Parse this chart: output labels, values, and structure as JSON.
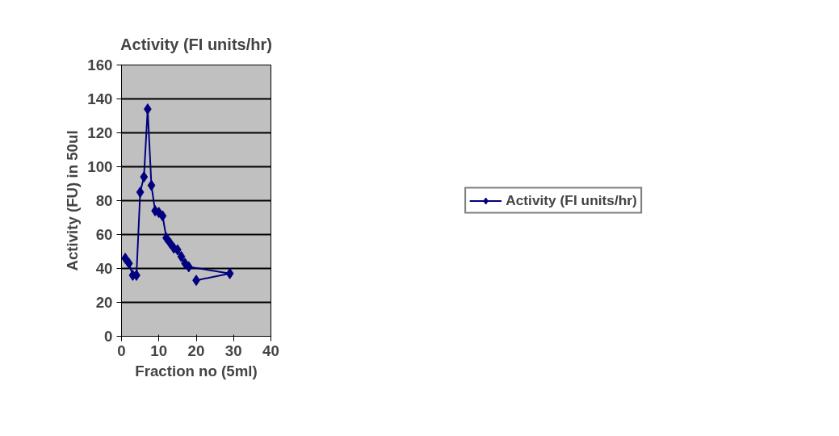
{
  "chart_data": {
    "type": "line",
    "title": "Activity (FI units/hr)",
    "xlabel": "Fraction no (5ml)",
    "ylabel": "Activity (FU) in 50ul",
    "x": [
      1,
      2,
      3,
      4,
      5,
      6,
      7,
      8,
      9,
      10,
      11,
      12,
      13,
      14,
      15,
      16,
      17,
      18,
      29,
      20
    ],
    "series": [
      {
        "name": "Activity (FI units/hr)",
        "color": "#000080",
        "values": [
          46,
          43,
          36,
          36,
          85,
          94,
          134,
          89,
          74,
          73,
          71,
          58,
          55,
          52,
          51,
          47,
          43,
          41,
          37,
          33
        ]
      }
    ],
    "xlim": [
      0,
      40
    ],
    "xticks": [
      0,
      10,
      20,
      30,
      40
    ],
    "ylim": [
      0,
      160
    ],
    "yticks": [
      0,
      20,
      40,
      60,
      80,
      100,
      120,
      140,
      160
    ],
    "grid": "y",
    "legend": "right",
    "marker": "diamond",
    "line_style": "solid"
  }
}
